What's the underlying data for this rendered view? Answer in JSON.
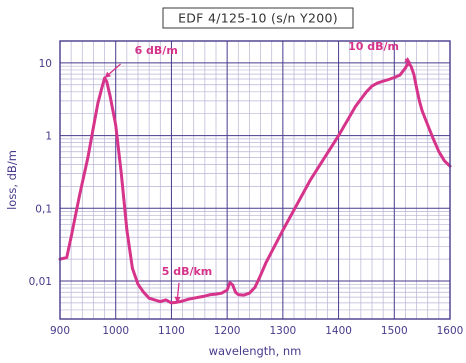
{
  "chart_data": {
    "type": "line",
    "title": "EDF 4/125-10 (s/n Y200)",
    "xlabel": "wavelength, nm",
    "ylabel": "loss, dB/m",
    "yscale": "log",
    "xlim": [
      900,
      1600
    ],
    "ylim": [
      0.003,
      20
    ],
    "x_ticks": [
      900,
      1000,
      1100,
      1200,
      1300,
      1400,
      1500,
      1600
    ],
    "x_tick_labels": [
      "900",
      "1000",
      "1100",
      "1200",
      "1300",
      "1400",
      "1500",
      "1600"
    ],
    "y_ticks": [
      0.01,
      0.1,
      1,
      10
    ],
    "y_tick_labels": [
      "0,01",
      "0,1",
      "1",
      "10"
    ],
    "grid": true,
    "color": "#d6338a",
    "series": [
      {
        "x": [
          900,
          912,
          920,
          935,
          950,
          960,
          968,
          975,
          980,
          984,
          990,
          1000,
          1010,
          1020,
          1030,
          1040,
          1050,
          1060,
          1070,
          1080,
          1090,
          1100,
          1110,
          1120,
          1130,
          1140,
          1150,
          1160,
          1170,
          1180,
          1190,
          1200,
          1205,
          1210,
          1215,
          1220,
          1230,
          1240,
          1250,
          1260,
          1270,
          1300,
          1350,
          1400,
          1430,
          1450,
          1460,
          1470,
          1480,
          1490,
          1500,
          1510,
          1520,
          1525,
          1530,
          1535,
          1540,
          1545,
          1550,
          1560,
          1570,
          1580,
          1590,
          1600
        ],
        "y": [
          0.02,
          0.021,
          0.04,
          0.15,
          0.5,
          1.3,
          2.8,
          4.5,
          6.2,
          5.5,
          3.5,
          1.4,
          0.3,
          0.05,
          0.015,
          0.009,
          0.007,
          0.0058,
          0.0055,
          0.0052,
          0.0055,
          0.005,
          0.0051,
          0.0053,
          0.0056,
          0.0058,
          0.006,
          0.0062,
          0.0065,
          0.0066,
          0.0068,
          0.0075,
          0.0095,
          0.0088,
          0.007,
          0.0065,
          0.0064,
          0.0068,
          0.0082,
          0.012,
          0.018,
          0.05,
          0.25,
          1.0,
          2.5,
          4.0,
          4.8,
          5.3,
          5.6,
          5.9,
          6.3,
          6.8,
          8.5,
          10,
          9,
          7,
          4.5,
          3.0,
          2.2,
          1.4,
          0.9,
          0.6,
          0.45,
          0.38
        ]
      }
    ],
    "annotations": [
      {
        "text": "6 dB/m",
        "x": 980,
        "y": 6.2
      },
      {
        "text": "5 dB/km",
        "x": 1110,
        "y": 0.005
      },
      {
        "text": "10 dB/m",
        "x": 1530,
        "y": 10
      }
    ]
  }
}
